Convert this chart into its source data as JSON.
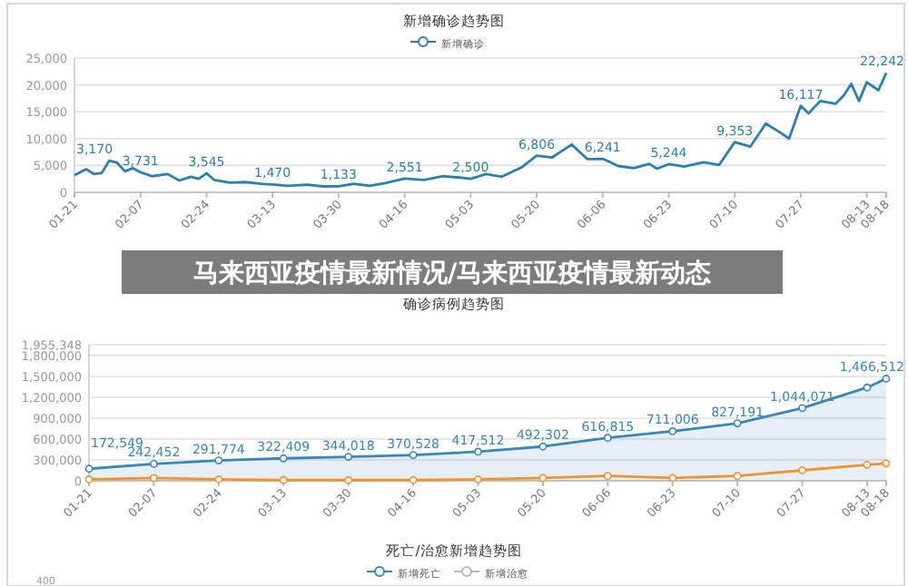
{
  "chart_data": [
    {
      "type": "line",
      "title": "新增确诊趋势图",
      "legend": "top",
      "grid": "y",
      "xlim": [
        "--01-21",
        "--08-18"
      ],
      "xticks": [
        {
          "value": "--01-21",
          "label": "01-21"
        },
        {
          "value": "--02-07",
          "label": "02-07"
        },
        {
          "value": "--02-24",
          "label": "02-24"
        },
        {
          "value": "--03-13",
          "label": "03-13"
        },
        {
          "value": "--03-30",
          "label": "03-30"
        },
        {
          "value": "--04-16",
          "label": "04-16"
        },
        {
          "value": "--05-03",
          "label": "05-03"
        },
        {
          "value": "--05-20",
          "label": "05-20"
        },
        {
          "value": "--06-06",
          "label": "06-06"
        },
        {
          "value": "--06-23",
          "label": "06-23"
        },
        {
          "value": "--07-10",
          "label": "07-10"
        },
        {
          "value": "--07-27",
          "label": "07-27"
        },
        {
          "value": "--08-13",
          "label": "08-13"
        },
        {
          "value": "--08-18",
          "label": "08-18"
        }
      ],
      "ylim": [
        0,
        25000
      ],
      "yticks": [
        0,
        {
          "value": 5000,
          "label": "5,000"
        },
        {
          "value": 10000,
          "label": "10,000"
        },
        {
          "value": 15000,
          "label": "15,000"
        },
        {
          "value": 20000,
          "label": "20,000"
        },
        {
          "value": 25000,
          "label": "25,000"
        }
      ],
      "series": [
        {
          "name": "新增确诊",
          "color": "#2e7fb0",
          "x": [
            "--01-21",
            "--01-24",
            "--01-26",
            "--01-28",
            "--01-30",
            "--02-01",
            "--02-03",
            "--02-05",
            "--02-07",
            "--02-10",
            "--02-14",
            "--02-17",
            "--02-20",
            "--02-22",
            "--02-24",
            "--02-26",
            "--03-02",
            "--03-06",
            "--03-10",
            "--03-13",
            "--03-17",
            "--03-22",
            "--03-26",
            "--03-30",
            "--04-03",
            "--04-07",
            "--04-11",
            "--04-16",
            "--04-21",
            "--04-26",
            "--05-01",
            "--05-03",
            "--05-07",
            "--05-11",
            "--05-16",
            "--05-20",
            "--05-24",
            "--05-29",
            "--06-02",
            "--06-06",
            "--06-10",
            "--06-14",
            "--06-18",
            "--06-20",
            "--06-23",
            "--06-27",
            "--07-02",
            "--07-06",
            "--07-10",
            "--07-14",
            "--07-18",
            "--07-22",
            "--07-24",
            "--07-27",
            "--07-29",
            "--08-01",
            "--08-05",
            "--08-07",
            "--08-09",
            "--08-11",
            "--08-13",
            "--08-16",
            "--08-18"
          ],
          "values": [
            3170,
            4300,
            3400,
            3600,
            5900,
            5500,
            3900,
            4500,
            3731,
            3000,
            3400,
            2200,
            2900,
            2500,
            3545,
            2300,
            1800,
            1900,
            1600,
            1470,
            1200,
            1400,
            1100,
            1133,
            1600,
            1200,
            1700,
            2551,
            2300,
            3000,
            2700,
            2500,
            3400,
            2900,
            4600,
            6806,
            6500,
            8900,
            6200,
            6241,
            4900,
            4500,
            5300,
            4400,
            5244,
            4800,
            5600,
            5100,
            9353,
            8500,
            12800,
            11000,
            10000,
            16117,
            14700,
            17000,
            16500,
            18000,
            20200,
            17000,
            20500,
            19000,
            22242
          ],
          "value_labels": [
            "3,170",
            null,
            null,
            null,
            null,
            null,
            null,
            null,
            "3,731",
            null,
            null,
            null,
            null,
            null,
            "3,545",
            null,
            null,
            null,
            null,
            "1,470",
            null,
            null,
            null,
            "1,133",
            null,
            null,
            null,
            "2,551",
            null,
            null,
            null,
            "2,500",
            null,
            null,
            null,
            "6,806",
            null,
            null,
            null,
            "6,241",
            null,
            null,
            null,
            null,
            "5,244",
            null,
            null,
            null,
            "9,353",
            null,
            null,
            null,
            null,
            "16,117",
            null,
            null,
            null,
            null,
            null,
            null,
            null,
            null,
            "22,242"
          ]
        }
      ]
    },
    {
      "type": "area",
      "title": "确诊病例趋势图",
      "grid": "y",
      "annotations": [
        "马来西亚疫情最新情况/马来西亚疫情最新动态"
      ],
      "xlim": [
        "--01-21",
        "--08-18"
      ],
      "xticks": [
        {
          "value": "--01-21",
          "label": "01-21"
        },
        {
          "value": "--02-07",
          "label": "02-07"
        },
        {
          "value": "--02-24",
          "label": "02-24"
        },
        {
          "value": "--03-13",
          "label": "03-13"
        },
        {
          "value": "--03-30",
          "label": "03-30"
        },
        {
          "value": "--04-16",
          "label": "04-16"
        },
        {
          "value": "--05-03",
          "label": "05-03"
        },
        {
          "value": "--05-20",
          "label": "05-20"
        },
        {
          "value": "--06-06",
          "label": "06-06"
        },
        {
          "value": "--06-23",
          "label": "06-23"
        },
        {
          "value": "--07-10",
          "label": "07-10"
        },
        {
          "value": "--07-27",
          "label": "07-27"
        },
        {
          "value": "--08-13",
          "label": "08-13"
        },
        {
          "value": "--08-18",
          "label": "08-18"
        }
      ],
      "ylim": [
        0,
        1955348
      ],
      "yticks": [
        0,
        {
          "value": 300000,
          "label": "300,000"
        },
        {
          "value": 600000,
          "label": "600,000"
        },
        {
          "value": 900000,
          "label": "900,000"
        },
        {
          "value": 1200000,
          "label": "1,200,000"
        },
        {
          "value": 1500000,
          "label": "1,500,000"
        },
        {
          "value": 1800000,
          "label": "1,800,000"
        },
        {
          "value": 1955348,
          "label": "1,955,348"
        }
      ],
      "x": [
        "--01-21",
        "--02-07",
        "--02-24",
        "--03-13",
        "--03-30",
        "--04-16",
        "--05-03",
        "--05-20",
        "--06-06",
        "--06-23",
        "--07-10",
        "--07-27",
        "--08-13",
        "--08-18"
      ],
      "marker": "circle",
      "series": [
        {
          "color": "#3a87b7",
          "values": [
            172549,
            242452,
            291774,
            322409,
            344018,
            370528,
            417512,
            492302,
            616815,
            711006,
            827191,
            1044071,
            1340000,
            1466512
          ],
          "value_labels": [
            "172,549",
            "242,452",
            "291,774",
            "322,409",
            "344,018",
            "370,528",
            "417,512",
            "492,302",
            "616,815",
            "711,006",
            "827,191",
            "1,044,071",
            null,
            "1,466,512"
          ]
        },
        {
          "type": "line",
          "color": "#f0922e",
          "values": [
            20000,
            40000,
            20000,
            10000,
            10000,
            10000,
            20000,
            40000,
            70000,
            40000,
            70000,
            150000,
            230000,
            250000
          ]
        }
      ]
    },
    {
      "type": "other",
      "title": "死亡/治愈新增趋势图",
      "legend": "top",
      "annotations": [
        "400"
      ],
      "series": [
        {
          "name": "新增死亡",
          "color": "#3a87b7"
        },
        {
          "name": "新增治愈",
          "color": "#b8b8b8"
        }
      ]
    }
  ]
}
